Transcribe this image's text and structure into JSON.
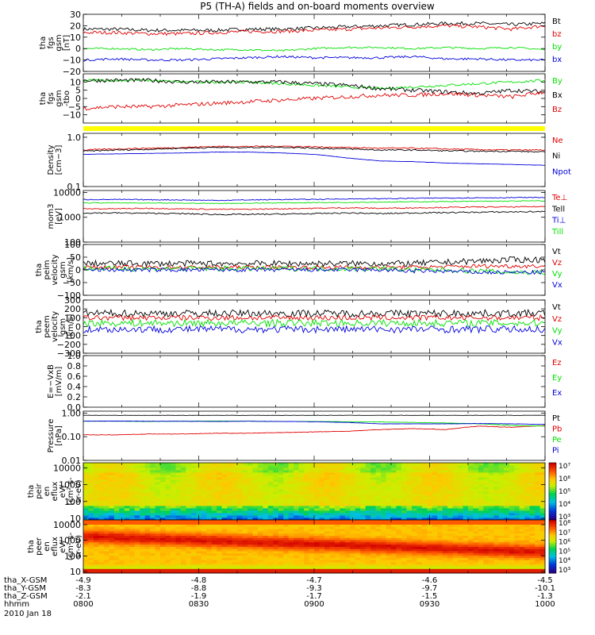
{
  "title": "P5 (TH-A) fields and on-board moments overview",
  "colors": {
    "black": "#000000",
    "red": "#e00000",
    "green": "#00e000",
    "blue": "#0000dd",
    "yellow": "#ffff00",
    "axis": "#000000"
  },
  "chart_data": [
    {
      "id": "fgs1",
      "type": "line",
      "ylabel": [
        "tha",
        "fgs",
        "gsm",
        "[nT]"
      ],
      "ylim": [
        -20,
        30
      ],
      "yticks": [
        "30",
        "20",
        "10",
        "0",
        "−10",
        "−20"
      ],
      "ytickvals": [
        30,
        20,
        10,
        0,
        -10,
        -20
      ],
      "series": [
        {
          "name": "Bt",
          "color": "black",
          "values": [
            17,
            17,
            16,
            16,
            16,
            17,
            17,
            18,
            19,
            20,
            21,
            22,
            22,
            21,
            22
          ],
          "noise": 1.5
        },
        {
          "name": "bz",
          "color": "red",
          "values": [
            14,
            14,
            13,
            13,
            14,
            15,
            15,
            16,
            17,
            18,
            19,
            20,
            19,
            17,
            20
          ],
          "noise": 1.5
        },
        {
          "name": "by",
          "color": "green",
          "values": [
            0,
            0,
            -1,
            0,
            -1,
            -1,
            -2,
            0,
            1,
            1,
            0,
            1,
            0,
            1,
            -1
          ],
          "noise": 0.8
        },
        {
          "name": "bx",
          "color": "blue",
          "values": [
            -10,
            -9,
            -10,
            -10,
            -9,
            -8,
            -7,
            -8,
            -8,
            -8,
            -7,
            -9,
            -9,
            -10,
            -10
          ],
          "noise": 1.0
        }
      ]
    },
    {
      "id": "fgs2",
      "type": "line",
      "ylabel": [
        "tha",
        "fgs",
        "gsm",
        "-tbo"
      ],
      "ylim": [
        -15,
        15
      ],
      "yticks": [
        "10",
        "5",
        "0",
        "−5",
        "−10"
      ],
      "ytickvals": [
        10,
        5,
        0,
        -5,
        -10
      ],
      "series": [
        {
          "name": "By",
          "color": "green",
          "values": [
            11,
            11,
            11,
            10,
            10,
            10,
            9,
            8,
            7,
            6,
            7,
            8,
            9,
            10,
            11
          ],
          "noise": 0.8
        },
        {
          "name": "Bx",
          "color": "black",
          "values": [
            11,
            11,
            11,
            10,
            10,
            10,
            10,
            9,
            8,
            6,
            5,
            4,
            3,
            5,
            4
          ],
          "noise": 1.2
        },
        {
          "name": "Bz",
          "color": "red",
          "values": [
            -6,
            -5,
            -5,
            -4,
            -3,
            -2,
            -1,
            0,
            1,
            2,
            2,
            3,
            2,
            1,
            4
          ],
          "noise": 1.2
        }
      ]
    },
    {
      "id": "density",
      "type": "line",
      "scale": "log",
      "ylabel": [
        "Density",
        "[cm−3]"
      ],
      "ylim": [
        0.1,
        1.2
      ],
      "yticks": [
        "1.0",
        "0.1"
      ],
      "ytickvals": [
        1.0,
        0.1
      ],
      "series": [
        {
          "name": "Ne",
          "color": "red",
          "values": [
            0.55,
            0.58,
            0.6,
            0.62,
            0.65,
            0.65,
            0.66,
            0.64,
            0.62,
            0.6,
            0.6,
            0.58,
            0.56,
            0.55,
            0.55
          ],
          "noise": 0.03
        },
        {
          "name": "Ni",
          "color": "black",
          "values": [
            0.52,
            0.55,
            0.57,
            0.6,
            0.62,
            0.62,
            0.63,
            0.6,
            0.58,
            0.55,
            0.55,
            0.53,
            0.52,
            0.52,
            0.5
          ],
          "noise": 0.03
        },
        {
          "name": "Npot",
          "color": "blue",
          "values": [
            0.45,
            0.46,
            0.47,
            0.48,
            0.5,
            0.5,
            0.48,
            0.45,
            0.38,
            0.33,
            0.32,
            0.3,
            0.29,
            0.28,
            0.27
          ],
          "noise": 0.005
        }
      ]
    },
    {
      "id": "temp",
      "type": "line",
      "scale": "log",
      "ylabel": [
        "mom3",
        "[eV]"
      ],
      "ylim": [
        100,
        12000
      ],
      "yticks": [
        "10000",
        "1000",
        "100"
      ],
      "ytickvals": [
        10000,
        1000,
        100
      ],
      "series": [
        {
          "name": "Te⊥",
          "color": "red",
          "values": [
            2200,
            2200,
            2300,
            2200,
            2100,
            2100,
            2200,
            2300,
            2400,
            2300,
            2400,
            2500,
            2600,
            2600,
            2700
          ],
          "noise": 0.05
        },
        {
          "name": "Tell",
          "color": "black",
          "values": [
            1500,
            1500,
            1450,
            1400,
            1300,
            1300,
            1350,
            1400,
            1500,
            1400,
            1500,
            1550,
            1600,
            1650,
            1700
          ],
          "noise": 0.06
        },
        {
          "name": "Ti⊥",
          "color": "blue",
          "values": [
            5200,
            5200,
            5100,
            5000,
            4800,
            5000,
            5200,
            5300,
            5500,
            5600,
            5800,
            6000,
            6100,
            6200,
            6300
          ],
          "noise": 0.04
        },
        {
          "name": "Till",
          "color": "green",
          "values": [
            3800,
            3800,
            3700,
            3700,
            3600,
            3700,
            3800,
            3900,
            4000,
            4100,
            4200,
            4300,
            4400,
            4500,
            4600
          ],
          "noise": 0.04
        }
      ]
    },
    {
      "id": "peimv",
      "type": "line",
      "ylabel": [
        "tha",
        "peim",
        "velocity",
        "gsm",
        "[km/s]"
      ],
      "ylim": [
        -100,
        100
      ],
      "yticks": [
        "100",
        "50",
        "0",
        "−50",
        "−100"
      ],
      "ytickvals": [
        100,
        50,
        0,
        -50,
        -100
      ],
      "series": [
        {
          "name": "Vt",
          "color": "black",
          "values": [
            25,
            25,
            25,
            25,
            25,
            25,
            25,
            25,
            25,
            25,
            25,
            30,
            35,
            40,
            40
          ],
          "noise": 12
        },
        {
          "name": "Vz",
          "color": "red",
          "values": [
            10,
            10,
            10,
            10,
            10,
            10,
            10,
            10,
            10,
            10,
            10,
            12,
            15,
            15,
            15
          ],
          "noise": 8
        },
        {
          "name": "Vy",
          "color": "green",
          "values": [
            5,
            5,
            5,
            5,
            5,
            5,
            5,
            5,
            5,
            5,
            0,
            0,
            -5,
            -10,
            -10
          ],
          "noise": 10
        },
        {
          "name": "Vx",
          "color": "blue",
          "values": [
            0,
            0,
            0,
            0,
            0,
            0,
            0,
            0,
            0,
            0,
            -5,
            -5,
            -10,
            -10,
            -10
          ],
          "noise": 8
        }
      ]
    },
    {
      "id": "peemv",
      "type": "line",
      "ylabel": [
        "tha",
        "peem",
        "velocity",
        "gsm",
        "[km/s]"
      ],
      "ylim": [
        -300,
        300
      ],
      "yticks": [
        "300",
        "200",
        "100",
        "0",
        "−100",
        "−200",
        "−300"
      ],
      "ytickvals": [
        300,
        200,
        100,
        0,
        -100,
        -200,
        -300
      ],
      "series": [
        {
          "name": "Vt",
          "color": "black",
          "values": [
            150,
            150,
            150,
            150,
            150,
            150,
            150,
            150,
            150,
            150,
            150,
            150,
            150,
            150,
            150
          ],
          "noise": 40
        },
        {
          "name": "Vz",
          "color": "red",
          "values": [
            100,
            100,
            100,
            100,
            100,
            100,
            100,
            100,
            100,
            100,
            100,
            100,
            100,
            100,
            100
          ],
          "noise": 30
        },
        {
          "name": "Vy",
          "color": "green",
          "values": [
            40,
            40,
            40,
            40,
            40,
            40,
            40,
            40,
            40,
            40,
            40,
            40,
            40,
            40,
            40
          ],
          "noise": 40
        },
        {
          "name": "Vx",
          "color": "blue",
          "values": [
            -30,
            -30,
            -30,
            -30,
            -30,
            -30,
            -30,
            -30,
            -30,
            -30,
            -30,
            -30,
            -30,
            -30,
            -30
          ],
          "noise": 40
        }
      ]
    },
    {
      "id": "efield",
      "type": "line",
      "ylabel": [
        "E=−VxB",
        "[mV/m]"
      ],
      "ylim": [
        0,
        1
      ],
      "yticks": [
        "1.0",
        "0.8",
        "0.6",
        "0.4",
        "0.2",
        "0.0"
      ],
      "ytickvals": [
        1,
        0.8,
        0.6,
        0.4,
        0.2,
        0
      ],
      "series": [
        {
          "name": "Ez",
          "color": "red",
          "values": []
        },
        {
          "name": "Ey",
          "color": "green",
          "values": []
        },
        {
          "name": "Ex",
          "color": "blue",
          "values": []
        }
      ]
    },
    {
      "id": "pressure",
      "type": "line",
      "scale": "log",
      "ylabel": [
        "Pressure",
        "[nPa]"
      ],
      "ylim": [
        0.01,
        1.2
      ],
      "yticks": [
        "1.00",
        "0.10",
        "0.01"
      ],
      "ytickvals": [
        1,
        0.1,
        0.01
      ],
      "series": [
        {
          "name": "Pt",
          "color": "black",
          "values": [
            0.8,
            0.8,
            0.8,
            0.8,
            0.8,
            0.8,
            0.8,
            0.8,
            0.8,
            0.8,
            0.8,
            0.8,
            0.8,
            0.8,
            0.8
          ],
          "noise": 0.01
        },
        {
          "name": "Pb",
          "color": "red",
          "values": [
            0.12,
            0.12,
            0.13,
            0.13,
            0.14,
            0.14,
            0.15,
            0.16,
            0.17,
            0.2,
            0.22,
            0.2,
            0.28,
            0.25,
            0.3
          ],
          "noise": 0.02
        },
        {
          "name": "Pe",
          "color": "green",
          "values": [
            0.45,
            0.45,
            0.44,
            0.45,
            0.46,
            0.45,
            0.44,
            0.44,
            0.43,
            0.42,
            0.4,
            0.38,
            0.35,
            0.3,
            0.28
          ],
          "noise": 0.01
        },
        {
          "name": "Pi",
          "color": "blue",
          "values": [
            0.45,
            0.46,
            0.45,
            0.45,
            0.44,
            0.45,
            0.44,
            0.43,
            0.4,
            0.35,
            0.35,
            0.35,
            0.36,
            0.35,
            0.33
          ],
          "noise": 0.01
        }
      ]
    },
    {
      "id": "peir",
      "type": "heatmap",
      "ylabel": [
        "tha",
        "peir",
        "en",
        "eflux",
        "eV/",
        "(cm²-s-",
        "sr-eV)"
      ],
      "yticks": [
        "10000",
        "1000",
        "100",
        "10"
      ],
      "ytickvals": [
        10000,
        1000,
        100,
        10
      ],
      "colorbar": {
        "ticks": [
          "10⁷",
          "10⁶",
          "10⁵",
          "10⁴",
          "10³"
        ],
        "range": [
          3,
          7
        ]
      }
    },
    {
      "id": "peer",
      "type": "heatmap",
      "ylabel": [
        "tha",
        "peer",
        "en",
        "eflux",
        "eV/",
        "(cm²-s-",
        "sr-eV)"
      ],
      "yticks": [
        "10000",
        "1000",
        "100",
        "10"
      ],
      "ytickvals": [
        10000,
        1000,
        100,
        10
      ],
      "colorbar": {
        "ticks": [
          "10⁸",
          "10⁷",
          "10⁶",
          "10⁵",
          "10⁴",
          "10³"
        ],
        "range": [
          3,
          8
        ]
      }
    }
  ],
  "xaxis": {
    "tick_labels": [
      "0800",
      "0830",
      "0900",
      "0930",
      "1000"
    ],
    "rows": [
      {
        "label": "tha_X-GSM",
        "values": [
          "-4.9",
          "-4.8",
          "-4.7",
          "-4.6",
          "-4.5"
        ]
      },
      {
        "label": "tha_Y-GSM",
        "values": [
          "-8.3",
          "-8.8",
          "-9.3",
          "-9.7",
          "-10.1"
        ]
      },
      {
        "label": "tha_Z-GSM",
        "values": [
          "-2.1",
          "-1.9",
          "-1.7",
          "-1.5",
          "-1.3"
        ]
      },
      {
        "label": "hhmm",
        "values": [
          "0800",
          "0830",
          "0900",
          "0930",
          "1000"
        ]
      }
    ],
    "date": "2010 Jan 18"
  }
}
